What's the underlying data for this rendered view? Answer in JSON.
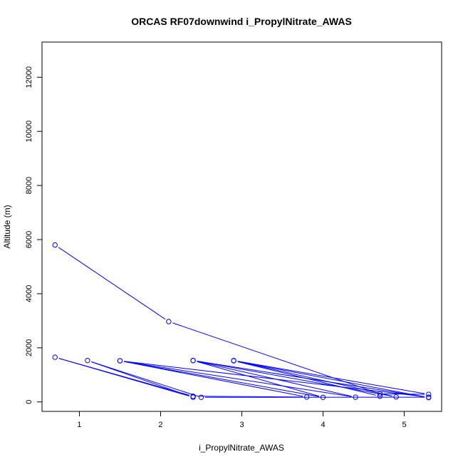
{
  "chart_data": {
    "type": "line",
    "title": "ORCAS RF07downwind i_PropylNitrate_AWAS",
    "xlabel": "i_PropylNitrate_AWAS",
    "ylabel": "Altitude (m)",
    "xlim": [
      0.54,
      5.46
    ],
    "ylim": [
      -350,
      13300
    ],
    "xticks": [
      1,
      2,
      3,
      4,
      5
    ],
    "yticks": [
      0,
      2000,
      4000,
      6000,
      8000,
      10000,
      12000
    ],
    "grid": false,
    "markers": "open-circle",
    "colors": {
      "series": "#0000ff",
      "axis": "#000000"
    },
    "series": [
      {
        "points": [
          {
            "x": 0.7,
            "y": 5800
          },
          {
            "x": 2.1,
            "y": 2970
          },
          {
            "x": 4.7,
            "y": 300
          },
          {
            "x": 5.3,
            "y": 280
          },
          {
            "x": 2.9,
            "y": 1530
          },
          {
            "x": 4.9,
            "y": 185
          },
          {
            "x": 2.4,
            "y": 1530
          },
          {
            "x": 4.4,
            "y": 175
          },
          {
            "x": 1.5,
            "y": 1520
          },
          {
            "x": 5.3,
            "y": 175
          },
          {
            "x": 2.5,
            "y": 170
          },
          {
            "x": 1.1,
            "y": 1530
          },
          {
            "x": 2.4,
            "y": 175
          },
          {
            "x": 0.7,
            "y": 1650
          },
          {
            "x": 2.4,
            "y": 210
          },
          {
            "x": 3.8,
            "y": 180
          },
          {
            "x": 1.5,
            "y": 1520
          },
          {
            "x": 4.0,
            "y": 170
          },
          {
            "x": 2.4,
            "y": 1530
          },
          {
            "x": 5.3,
            "y": 160
          },
          {
            "x": 2.9,
            "y": 1520
          },
          {
            "x": 4.7,
            "y": 210
          }
        ]
      }
    ]
  }
}
